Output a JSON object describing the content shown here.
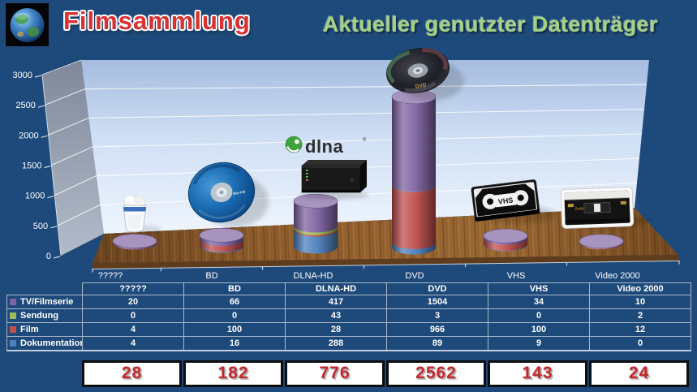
{
  "header": {
    "title_left": "Filmsammlung",
    "title_right": "Aktueller genutzter Datenträger",
    "title_left_color": "#d93030",
    "title_right_color": "#a3d185",
    "logo_icon": "globe-logo"
  },
  "chart_data": {
    "type": "bar",
    "variant": "3d-stacked-cylinders",
    "title": "Aktueller genutzter Datenträger",
    "categories": [
      "?????",
      "BD",
      "DLNA-HD",
      "DVD",
      "VHS",
      "Video 2000"
    ],
    "series": [
      {
        "name": "TV/Filmserie",
        "color": "#8064A2",
        "values": [
          20,
          66,
          417,
          1504,
          34,
          10
        ]
      },
      {
        "name": "Sendung",
        "color": "#9BBB59",
        "values": [
          0,
          0,
          43,
          3,
          0,
          2
        ]
      },
      {
        "name": "Film",
        "color": "#C0504D",
        "values": [
          4,
          100,
          28,
          966,
          100,
          12
        ]
      },
      {
        "name": "Dokumentation",
        "color": "#4F81BD",
        "values": [
          4,
          16,
          288,
          89,
          9,
          0
        ]
      }
    ],
    "stack_order_bottom_to_top": [
      "Dokumentation",
      "Film",
      "Sendung",
      "TV/Filmserie"
    ],
    "totals": [
      28,
      182,
      776,
      2562,
      143,
      24
    ],
    "ylim": [
      0,
      3000
    ],
    "yticks": [
      "0",
      "500",
      "1000",
      "1500",
      "2000",
      "2500",
      "3000"
    ],
    "grid": true,
    "legend_position": "table-rows",
    "category_icons": [
      "waste-bin-icon",
      "blu-ray-disc-icon",
      "dlna-nas-icon",
      "dvd-disc-icon",
      "vhs-cassette-icon",
      "video2000-cassette-icon"
    ],
    "icon_texts": {
      "dlna_logo": "dlna",
      "vhs_label": "VHS",
      "dvd_label": "DVD",
      "video2000_label": "2x4h",
      "bluray_label": "Blu-ray"
    }
  },
  "table": {
    "header": [
      "?????",
      "BD",
      "DLNA-HD",
      "DVD",
      "VHS",
      "Video 2000"
    ],
    "rows": [
      {
        "label": "TV/Filmserie",
        "marker_color": "#8064A2",
        "values": [
          "20",
          "66",
          "417",
          "1504",
          "34",
          "10"
        ]
      },
      {
        "label": "Sendung",
        "marker_color": "#9BBB59",
        "values": [
          "0",
          "0",
          "43",
          "3",
          "0",
          "2"
        ]
      },
      {
        "label": "Film",
        "marker_color": "#C0504D",
        "values": [
          "4",
          "100",
          "28",
          "966",
          "100",
          "12"
        ]
      },
      {
        "label": "Dokumentation",
        "marker_color": "#4F81BD",
        "values": [
          "4",
          "16",
          "288",
          "89",
          "9",
          "0"
        ]
      }
    ],
    "totals": [
      "28",
      "182",
      "776",
      "2562",
      "143",
      "24"
    ]
  },
  "colors": {
    "page_background": "#1e4a7b",
    "table_border": "#a9b7c9",
    "wall_top": "#a6bcdf",
    "wall_bottom": "#eff5fe",
    "side_wall": "#8a93a3",
    "floor_wood": "#8f5c2b",
    "grid_line": "#ffffff",
    "axis_text": "#ffffff",
    "totals_text": "#c4282d",
    "totals_box_background": "#ffffff",
    "totals_box_border": "#0d0d0d"
  }
}
